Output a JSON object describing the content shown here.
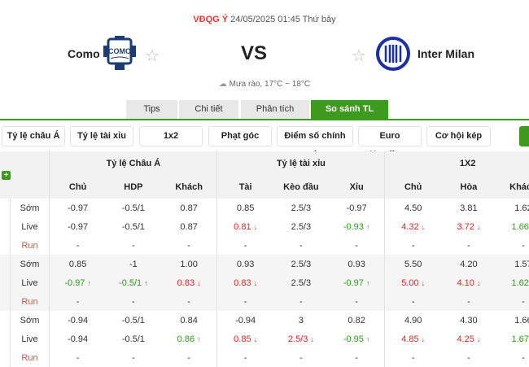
{
  "match": {
    "league": "VĐQG Ý",
    "datetime": "24/05/2025 01:45 Thứ bảy",
    "home": "Como",
    "away": "Inter Milan",
    "vs": "VS",
    "weather": "Mưa rào, 17°C ~ 18°C"
  },
  "tabs": [
    "Tips",
    "Chi tiết",
    "Phân tích",
    "So sánh TL"
  ],
  "filters": [
    "Tỷ lệ châu Á",
    "Tỷ lệ tài xỉu",
    "1x2",
    "Phạt góc",
    "Điểm số chính xác",
    "Euro Handicap",
    "Cơ hội kép"
  ],
  "table": {
    "groups": [
      "Tỷ lệ Châu Á",
      "Tỷ lệ tài xỉu",
      "1X2"
    ],
    "columns": [
      "Chủ",
      "HDP",
      "Khách",
      "Tài",
      "Kèo đầu",
      "Xỉu",
      "Chủ",
      "Hòa",
      "Khách"
    ],
    "blocks": [
      {
        "rows": [
          {
            "label": "Sớm",
            "cells": [
              [
                "-0.97",
                ""
              ],
              [
                "-0.5/1",
                ""
              ],
              [
                "0.87",
                ""
              ],
              [
                "0.85",
                ""
              ],
              [
                "2.5/3",
                ""
              ],
              [
                "-0.97",
                ""
              ],
              [
                "4.50",
                ""
              ],
              [
                "3.81",
                ""
              ],
              [
                "1.62",
                ""
              ]
            ]
          },
          {
            "label": "Live",
            "cells": [
              [
                "-0.97",
                ""
              ],
              [
                "-0.5/1",
                ""
              ],
              [
                "0.87",
                ""
              ],
              [
                "0.81",
                "down"
              ],
              [
                "2.5/3",
                ""
              ],
              [
                "-0.93",
                "up"
              ],
              [
                "4.32",
                "down"
              ],
              [
                "3.72",
                "down"
              ],
              [
                "1.66",
                "up"
              ]
            ]
          },
          {
            "label": "Run",
            "cells": [
              [
                "-",
                ""
              ],
              [
                "-",
                ""
              ],
              [
                "-",
                ""
              ],
              [
                "-",
                ""
              ],
              [
                "-",
                ""
              ],
              [
                "-",
                ""
              ],
              [
                "-",
                ""
              ],
              [
                "-",
                ""
              ],
              [
                "-",
                ""
              ]
            ]
          }
        ]
      },
      {
        "rows": [
          {
            "label": "Sớm",
            "cells": [
              [
                "0.85",
                ""
              ],
              [
                "-1",
                ""
              ],
              [
                "1.00",
                ""
              ],
              [
                "0.93",
                ""
              ],
              [
                "2.5/3",
                ""
              ],
              [
                "0.93",
                ""
              ],
              [
                "5.50",
                ""
              ],
              [
                "4.20",
                ""
              ],
              [
                "1.57",
                ""
              ]
            ]
          },
          {
            "label": "Live",
            "cells": [
              [
                "-0.97",
                "up"
              ],
              [
                "-0.5/1",
                "up"
              ],
              [
                "0.83",
                "down"
              ],
              [
                "0.83",
                "down"
              ],
              [
                "2.5/3",
                ""
              ],
              [
                "-0.97",
                "up"
              ],
              [
                "5.00",
                "down"
              ],
              [
                "4.10",
                "down"
              ],
              [
                "1.62",
                "up"
              ]
            ]
          },
          {
            "label": "Run",
            "cells": [
              [
                "-",
                ""
              ],
              [
                "-",
                ""
              ],
              [
                "-",
                ""
              ],
              [
                "-",
                ""
              ],
              [
                "-",
                ""
              ],
              [
                "-",
                ""
              ],
              [
                "-",
                ""
              ],
              [
                "-",
                ""
              ],
              [
                "-",
                ""
              ]
            ]
          }
        ]
      },
      {
        "rows": [
          {
            "label": "Sớm",
            "cells": [
              [
                "-0.94",
                ""
              ],
              [
                "-0.5/1",
                ""
              ],
              [
                "0.84",
                ""
              ],
              [
                "-0.94",
                ""
              ],
              [
                "3",
                ""
              ],
              [
                "0.82",
                ""
              ],
              [
                "4.90",
                ""
              ],
              [
                "4.30",
                ""
              ],
              [
                "1.66",
                ""
              ]
            ]
          },
          {
            "label": "Live",
            "cells": [
              [
                "-0.94",
                ""
              ],
              [
                "-0.5/1",
                ""
              ],
              [
                "0.86",
                "up"
              ],
              [
                "0.85",
                "down"
              ],
              [
                "2.5/3",
                "down"
              ],
              [
                "-0.95",
                "up"
              ],
              [
                "4.85",
                "down"
              ],
              [
                "4.25",
                "down"
              ],
              [
                "1.67",
                "up"
              ]
            ]
          },
          {
            "label": "Run",
            "cells": [
              [
                "-",
                ""
              ],
              [
                "-",
                ""
              ],
              [
                "-",
                ""
              ],
              [
                "-",
                ""
              ],
              [
                "-",
                ""
              ],
              [
                "-",
                ""
              ],
              [
                "-",
                ""
              ],
              [
                "-",
                ""
              ],
              [
                "-",
                ""
              ]
            ]
          }
        ]
      }
    ]
  },
  "colors": {
    "accent": "#3d9a1f",
    "down": "#ee2222",
    "up": "#2e9b1a"
  }
}
